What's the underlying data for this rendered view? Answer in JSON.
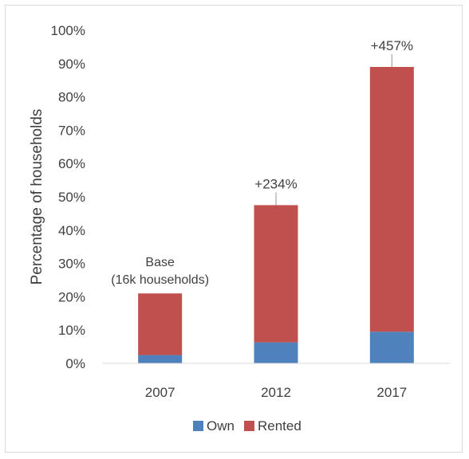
{
  "chart_data": {
    "type": "bar",
    "stacked": true,
    "categories": [
      "2007",
      "2012",
      "2017"
    ],
    "series": [
      {
        "name": "Own",
        "color": "#4f81bd",
        "values": [
          2.5,
          6.3,
          9.5
        ]
      },
      {
        "name": "Rented",
        "color": "#c0504d",
        "values": [
          18.5,
          41.2,
          79.5
        ]
      }
    ],
    "annotations": [
      {
        "category": "2007",
        "lines": [
          "Base",
          "(16k households)"
        ]
      },
      {
        "category": "2012",
        "lines": [
          "+234%"
        ]
      },
      {
        "category": "2017",
        "lines": [
          "+457%"
        ]
      }
    ],
    "ylabel": "Percentage of households",
    "ylim": [
      0,
      100
    ],
    "yticks": [
      "0%",
      "10%",
      "20%",
      "30%",
      "40%",
      "50%",
      "60%",
      "70%",
      "80%",
      "90%",
      "100%"
    ],
    "grid": false,
    "legend_position": "bottom"
  }
}
